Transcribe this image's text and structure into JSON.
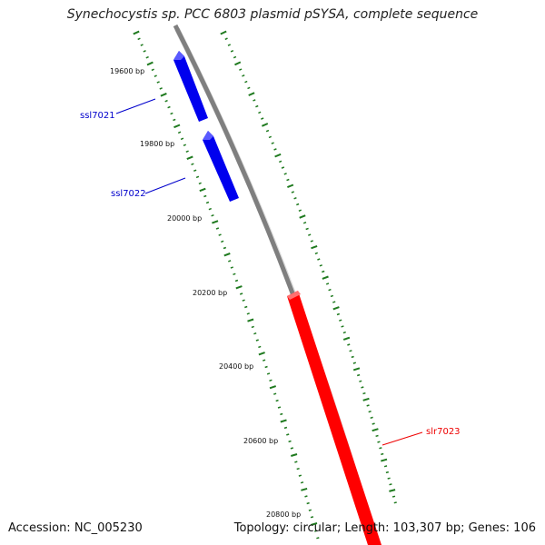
{
  "title": "Synechocystis sp. PCC 6803 plasmid pSYSA, complete sequence",
  "accession_label": "Accession: NC_005230",
  "summary_label": "Topology: circular; Length: 103,307 bp; Genes: 106",
  "colors": {
    "background": "#ffffff",
    "backbone": "#7f7f7f",
    "tick": "#1f7a1f",
    "forward_gene": "#ff0000",
    "reverse_gene": "#0000ee"
  },
  "scale_labels": [
    "19600 bp",
    "19800 bp",
    "20000 bp",
    "20200 bp",
    "20400 bp",
    "20600 bp",
    "20800 bp"
  ],
  "genes": [
    {
      "name": "ssl7021",
      "strand": "reverse"
    },
    {
      "name": "ssl7022",
      "strand": "reverse"
    },
    {
      "name": "slr7023",
      "strand": "forward"
    }
  ]
}
